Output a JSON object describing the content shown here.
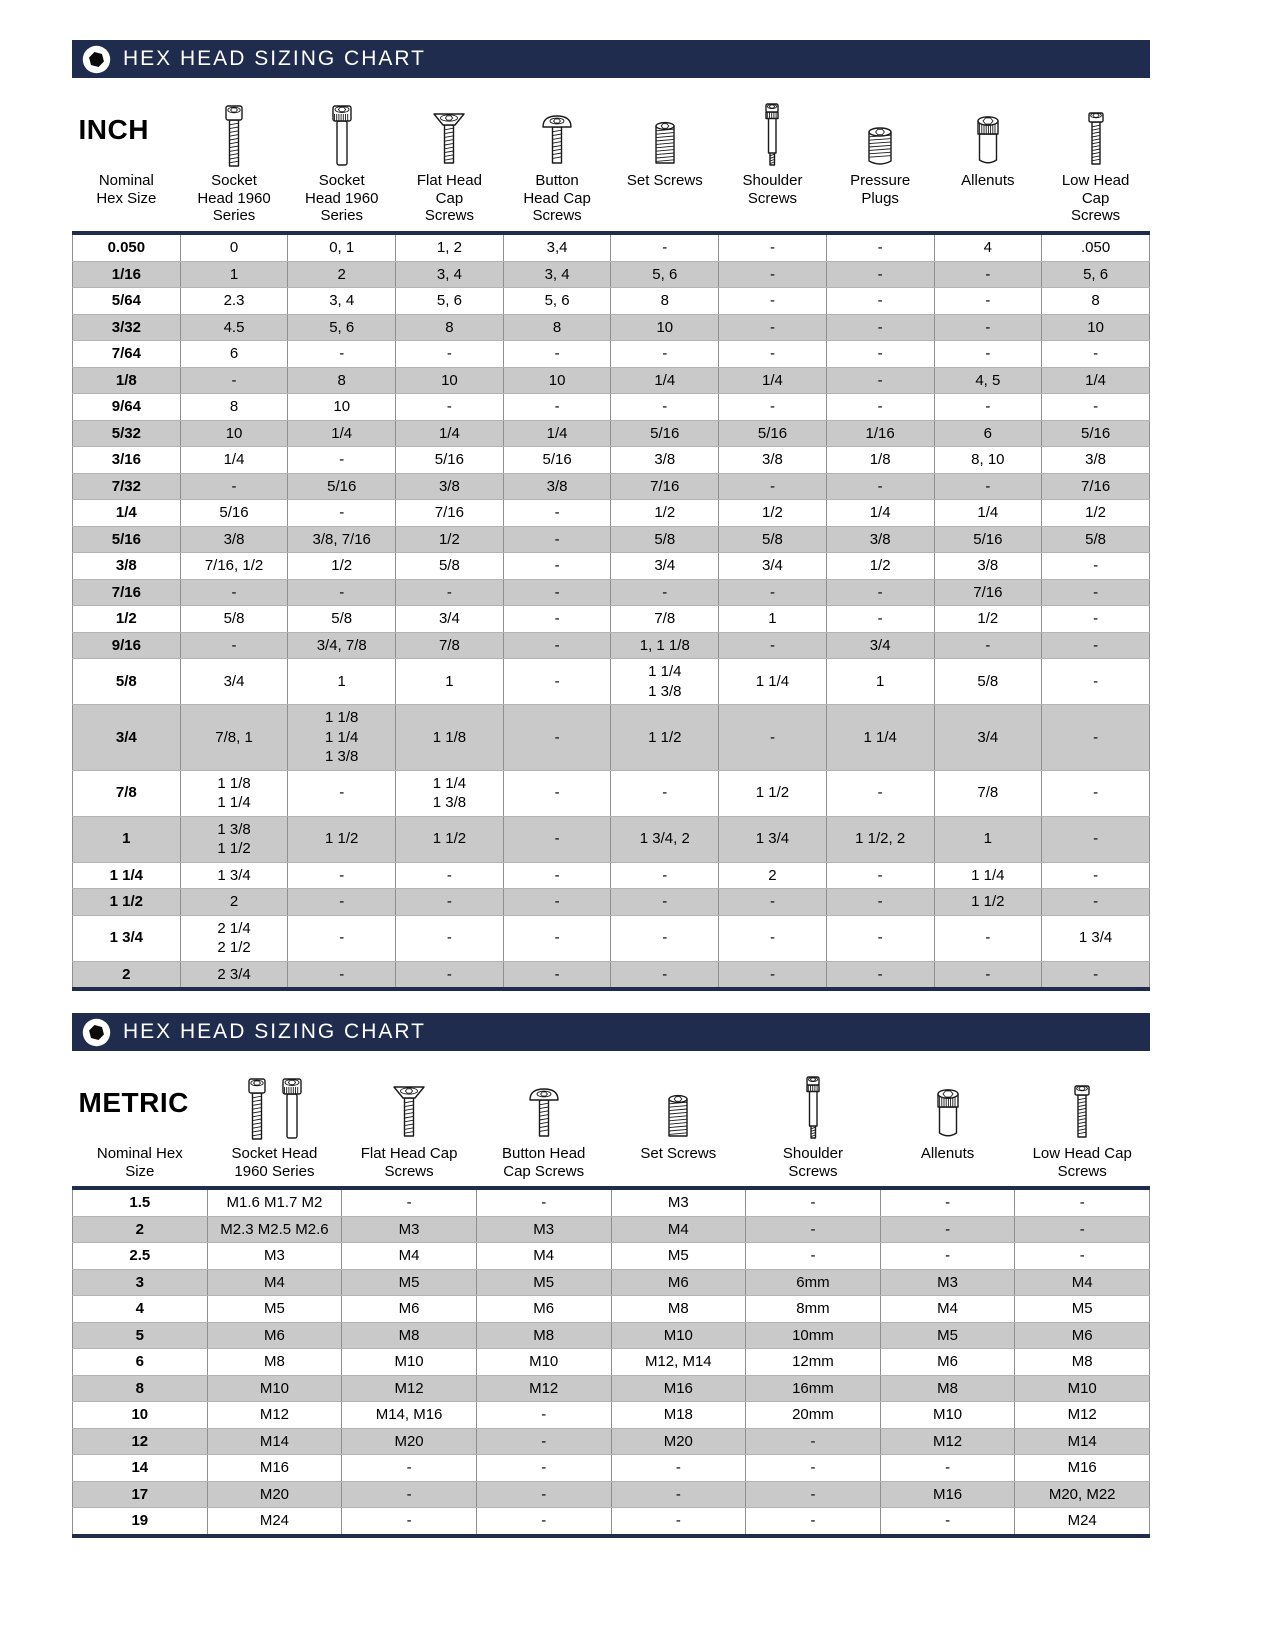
{
  "banner": {
    "title": "HEX HEAD SIZING CHART"
  },
  "colors": {
    "banner_navy": "#1f2c4e",
    "row_stripe": "#c9c9c9",
    "table_rule": "#8f8f8f"
  },
  "inch_table": {
    "unit_label": "INCH",
    "columns": [
      {
        "label": "Nominal\nHex Size",
        "icon": ""
      },
      {
        "label": "Socket\nHead 1960\nSeries",
        "icon": "cap-screw"
      },
      {
        "label": "Socket\nHead 1960\nSeries",
        "icon": "knurled-cap-screw"
      },
      {
        "label": "Flat Head\nCap\nScrews",
        "icon": "flat-head-screw"
      },
      {
        "label": "Button\nHead Cap\nScrews",
        "icon": "button-head-screw"
      },
      {
        "label": "Set Screws",
        "icon": "set-screw"
      },
      {
        "label": "Shoulder\nScrews",
        "icon": "shoulder-screw"
      },
      {
        "label": "Pressure\nPlugs",
        "icon": "pressure-plug"
      },
      {
        "label": "Allenuts",
        "icon": "allenut"
      },
      {
        "label": "Low Head\nCap\nScrews",
        "icon": "low-head-screw"
      }
    ],
    "rows": [
      [
        "0.050",
        "0",
        "0, 1",
        "1, 2",
        "3,4",
        "-",
        "-",
        "-",
        "4",
        ".050"
      ],
      [
        "1/16",
        "1",
        "2",
        "3, 4",
        "3, 4",
        "5, 6",
        "-",
        "-",
        "-",
        "5, 6"
      ],
      [
        "5/64",
        "2.3",
        "3, 4",
        "5, 6",
        "5, 6",
        "8",
        "-",
        "-",
        "-",
        "8"
      ],
      [
        "3/32",
        "4.5",
        "5, 6",
        "8",
        "8",
        "10",
        "-",
        "-",
        "-",
        "10"
      ],
      [
        "7/64",
        "6",
        "-",
        "-",
        "-",
        "-",
        "-",
        "-",
        "-",
        "-"
      ],
      [
        "1/8",
        "-",
        "8",
        "10",
        "10",
        "1/4",
        "1/4",
        "-",
        "4, 5",
        "1/4"
      ],
      [
        "9/64",
        "8",
        "10",
        "-",
        "-",
        "-",
        "-",
        "-",
        "-",
        "-"
      ],
      [
        "5/32",
        "10",
        "1/4",
        "1/4",
        "1/4",
        "5/16",
        "5/16",
        "1/16",
        "6",
        "5/16"
      ],
      [
        "3/16",
        "1/4",
        "-",
        "5/16",
        "5/16",
        "3/8",
        "3/8",
        "1/8",
        "8, 10",
        "3/8"
      ],
      [
        "7/32",
        "-",
        "5/16",
        "3/8",
        "3/8",
        "7/16",
        "-",
        "-",
        "-",
        "7/16"
      ],
      [
        "1/4",
        "5/16",
        "-",
        "7/16",
        "-",
        "1/2",
        "1/2",
        "1/4",
        "1/4",
        "1/2"
      ],
      [
        "5/16",
        "3/8",
        "3/8, 7/16",
        "1/2",
        "-",
        "5/8",
        "5/8",
        "3/8",
        "5/16",
        "5/8"
      ],
      [
        "3/8",
        "7/16, 1/2",
        "1/2",
        "5/8",
        "-",
        "3/4",
        "3/4",
        "1/2",
        "3/8",
        "-"
      ],
      [
        "7/16",
        "-",
        "-",
        "-",
        "-",
        "-",
        "-",
        "-",
        "7/16",
        "-"
      ],
      [
        "1/2",
        "5/8",
        "5/8",
        "3/4",
        "-",
        "7/8",
        "1",
        "-",
        "1/2",
        "-"
      ],
      [
        "9/16",
        "-",
        "3/4, 7/8",
        "7/8",
        "-",
        "1, 1 1/8",
        "-",
        "3/4",
        "-",
        "-"
      ],
      [
        "5/8",
        "3/4",
        "1",
        "1",
        "-",
        "1 1/4\n1 3/8",
        "1 1/4",
        "1",
        "5/8",
        "-"
      ],
      [
        "3/4",
        "7/8, 1",
        "1 1/8\n1 1/4\n1 3/8",
        "1 1/8",
        "-",
        "1 1/2",
        "-",
        "1 1/4",
        "3/4",
        "-"
      ],
      [
        "7/8",
        "1 1/8\n1 1/4",
        "-",
        "1 1/4\n1 3/8",
        "-",
        "-",
        "1 1/2",
        "-",
        "7/8",
        "-"
      ],
      [
        "1",
        "1 3/8\n1 1/2",
        "1 1/2",
        "1 1/2",
        "-",
        "1 3/4, 2",
        "1 3/4",
        "1 1/2, 2",
        "1",
        "-"
      ],
      [
        "1 1/4",
        "1 3/4",
        "-",
        "-",
        "-",
        "-",
        "2",
        "-",
        "1 1/4",
        "-"
      ],
      [
        "1 1/2",
        "2",
        "-",
        "-",
        "-",
        "-",
        "-",
        "-",
        "1 1/2",
        "-"
      ],
      [
        "1 3/4",
        "2 1/4\n2 1/2",
        "-",
        "-",
        "-",
        "-",
        "-",
        "-",
        "-",
        "1 3/4"
      ],
      [
        "2",
        "2 3/4",
        "-",
        "-",
        "-",
        "-",
        "-",
        "-",
        "-",
        "-"
      ]
    ]
  },
  "metric_table": {
    "unit_label": "METRIC",
    "columns": [
      {
        "label": "Nominal Hex\nSize",
        "icon": ""
      },
      {
        "label": "Socket Head\n1960 Series",
        "icon": "cap-screw-pair"
      },
      {
        "label": "Flat Head Cap\nScrews",
        "icon": "flat-head-screw"
      },
      {
        "label": "Button Head\nCap Screws",
        "icon": "button-head-screw"
      },
      {
        "label": "Set Screws",
        "icon": "set-screw"
      },
      {
        "label": "Shoulder\nScrews",
        "icon": "shoulder-screw"
      },
      {
        "label": "Allenuts",
        "icon": "allenut"
      },
      {
        "label": "Low Head Cap\nScrews",
        "icon": "low-head-screw"
      }
    ],
    "rows": [
      [
        "1.5",
        "M1.6 M1.7 M2",
        "-",
        "-",
        "M3",
        "-",
        "-",
        "-"
      ],
      [
        "2",
        "M2.3 M2.5 M2.6",
        "M3",
        "M3",
        "M4",
        "-",
        "-",
        "-"
      ],
      [
        "2.5",
        "M3",
        "M4",
        "M4",
        "M5",
        "-",
        "-",
        "-"
      ],
      [
        "3",
        "M4",
        "M5",
        "M5",
        "M6",
        "6mm",
        "M3",
        "M4"
      ],
      [
        "4",
        "M5",
        "M6",
        "M6",
        "M8",
        "8mm",
        "M4",
        "M5"
      ],
      [
        "5",
        "M6",
        "M8",
        "M8",
        "M10",
        "10mm",
        "M5",
        "M6"
      ],
      [
        "6",
        "M8",
        "M10",
        "M10",
        "M12, M14",
        "12mm",
        "M6",
        "M8"
      ],
      [
        "8",
        "M10",
        "M12",
        "M12",
        "M16",
        "16mm",
        "M8",
        "M10"
      ],
      [
        "10",
        "M12",
        "M14, M16",
        "-",
        "M18",
        "20mm",
        "M10",
        "M12"
      ],
      [
        "12",
        "M14",
        "M20",
        "-",
        "M20",
        "-",
        "M12",
        "M14"
      ],
      [
        "14",
        "M16",
        "-",
        "-",
        "-",
        "-",
        "-",
        "M16"
      ],
      [
        "17",
        "M20",
        "-",
        "-",
        "-",
        "-",
        "M16",
        "M20, M22"
      ],
      [
        "19",
        "M24",
        "-",
        "-",
        "-",
        "-",
        "-",
        "M24"
      ]
    ]
  }
}
